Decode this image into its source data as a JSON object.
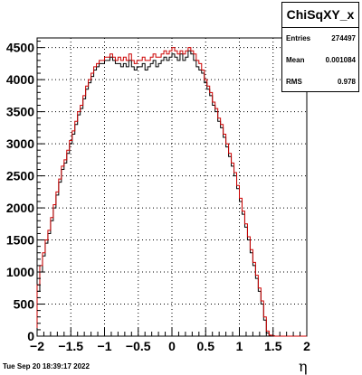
{
  "chart_data": {
    "type": "histogram",
    "title": "",
    "xlabel": "η",
    "ylabel": "",
    "xlim": [
      -2,
      2
    ],
    "ylim": [
      0,
      4650
    ],
    "grid": true,
    "xticks": [
      -2,
      -1.5,
      -1,
      -0.5,
      0,
      0.5,
      1,
      1.5,
      2
    ],
    "yticks": [
      0,
      500,
      1000,
      1500,
      2000,
      2500,
      3000,
      3500,
      4000,
      4500
    ],
    "bin_edges_start": -2,
    "bin_width": 0.04,
    "series": [
      {
        "color": "#000000",
        "values": [
          700,
          1000,
          1250,
          1450,
          1600,
          1800,
          2000,
          2200,
          2400,
          2600,
          2700,
          2850,
          3000,
          3150,
          3300,
          3450,
          3550,
          3700,
          3850,
          3950,
          4050,
          4150,
          4200,
          4250,
          4250,
          4300,
          4300,
          4350,
          4300,
          4250,
          4250,
          4200,
          4250,
          4200,
          4300,
          4200,
          4150,
          4200,
          4200,
          4250,
          4150,
          4200,
          4250,
          4300,
          4200,
          4250,
          4300,
          4350,
          4300,
          4350,
          4400,
          4350,
          4300,
          4400,
          4300,
          4350,
          4450,
          4400,
          4300,
          4200,
          4150,
          4100,
          3950,
          3850,
          3750,
          3600,
          3500,
          3350,
          3250,
          3100,
          2950,
          2800,
          2650,
          2500,
          2300,
          2100,
          1900,
          1700,
          1500,
          1300,
          1100,
          900,
          700,
          500,
          250,
          50,
          10,
          5,
          0,
          0,
          0,
          0,
          0,
          0,
          0,
          0,
          0,
          0,
          0,
          0
        ]
      },
      {
        "color": "#cc0000",
        "values": [
          800,
          1100,
          1300,
          1500,
          1650,
          1850,
          2050,
          2250,
          2450,
          2650,
          2750,
          2900,
          3050,
          3200,
          3350,
          3500,
          3600,
          3750,
          3900,
          4000,
          4100,
          4200,
          4250,
          4300,
          4300,
          4350,
          4350,
          4400,
          4350,
          4300,
          4350,
          4300,
          4350,
          4300,
          4400,
          4300,
          4250,
          4300,
          4300,
          4350,
          4300,
          4300,
          4350,
          4400,
          4350,
          4350,
          4400,
          4450,
          4400,
          4450,
          4500,
          4450,
          4400,
          4450,
          4400,
          4450,
          4500,
          4450,
          4400,
          4300,
          4250,
          4150,
          4000,
          3900,
          3800,
          3650,
          3550,
          3400,
          3300,
          3150,
          3000,
          2850,
          2700,
          2550,
          2350,
          2150,
          1950,
          1750,
          1550,
          1350,
          1150,
          950,
          750,
          550,
          300,
          80,
          15,
          5,
          0,
          0,
          0,
          0,
          0,
          0,
          0,
          0,
          0,
          0,
          0,
          0
        ]
      }
    ]
  },
  "stats_box": {
    "title": "ChiSqXY_x",
    "entries_label": "Entries",
    "entries_value": "274497",
    "mean_label": "Mean",
    "mean_value": "0.001084",
    "rms_label": "RMS",
    "rms_value": "0.978"
  },
  "footer_text": "Tue Sep 20 18:39:17 2022"
}
